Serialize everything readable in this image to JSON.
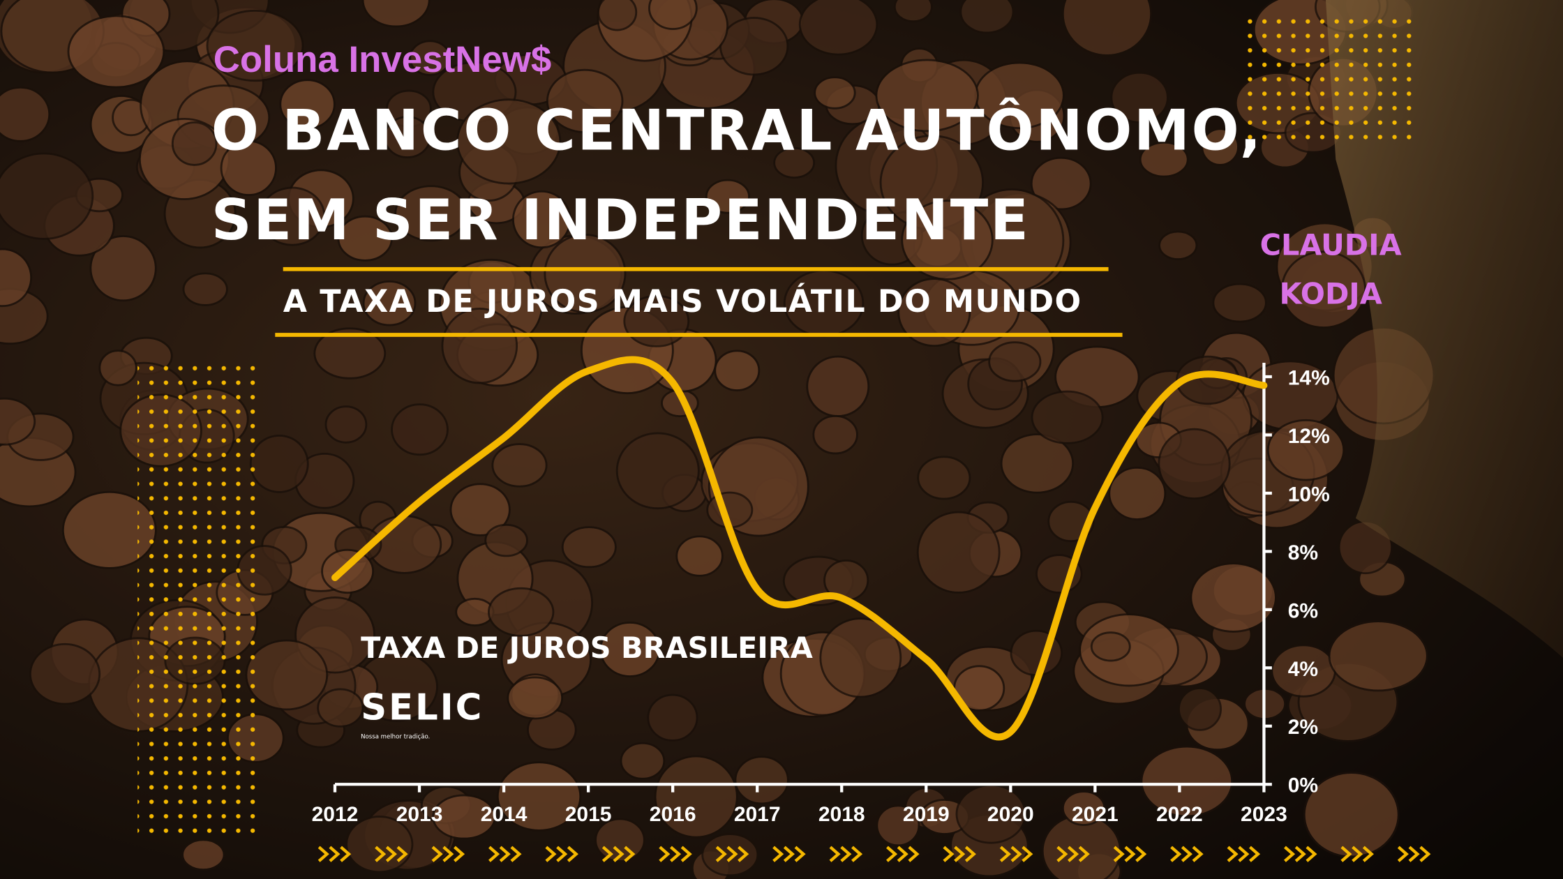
{
  "chart_data": {
    "type": "line",
    "header": "Coluna InvestNew$",
    "title": [
      "O BANCO CENTRAL AUTÔNOMO,",
      "SEM SER INDEPENDENTE"
    ],
    "subtitle": "A TAXA DE JUROS MAIS VOLÁTIL DO MUNDO",
    "author": [
      "CLAUDIA",
      "KODJA"
    ],
    "annotations": [
      "TAXA DE JUROS BRASILEIRA",
      "SELIC",
      "Nossa melhor tradição."
    ],
    "x": [
      2012,
      2013,
      2014,
      2015,
      2016,
      2017,
      2018,
      2019,
      2020,
      2021,
      2022,
      2023
    ],
    "values": [
      7.1,
      9.7,
      11.9,
      14.2,
      13.8,
      6.7,
      6.4,
      4.3,
      1.8,
      9.5,
      13.8,
      13.7
    ],
    "color": "#f5b800",
    "xlim": [
      2012,
      2023
    ],
    "xticks": [
      2012,
      2013,
      2014,
      2015,
      2016,
      2017,
      2018,
      2019,
      2020,
      2021,
      2022,
      2023
    ],
    "ylim": [
      0,
      14
    ],
    "yticks": [
      {
        "value": 0,
        "label": "0%"
      },
      {
        "value": 2,
        "label": "2%"
      },
      {
        "value": 4,
        "label": "4%"
      },
      {
        "value": 6,
        "label": "6%"
      },
      {
        "value": 8,
        "label": "8%"
      },
      {
        "value": 10,
        "label": "10%"
      },
      {
        "value": 12,
        "label": "12%"
      },
      {
        "value": 14,
        "label": "14%"
      }
    ],
    "y_axis_side": "right"
  }
}
